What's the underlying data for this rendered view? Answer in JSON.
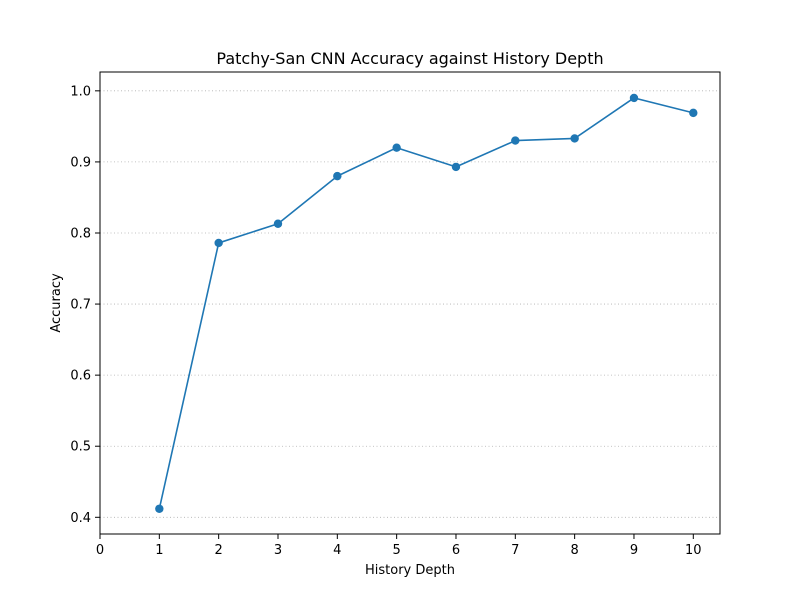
{
  "chart_data": {
    "type": "line",
    "title": "Patchy-San CNN Accuracy against History Depth",
    "xlabel": "History Depth",
    "ylabel": "Accuracy",
    "xlim": [
      0,
      10.45
    ],
    "ylim": [
      0.3765,
      1.0265
    ],
    "x_ticks": [
      0,
      1,
      2,
      3,
      4,
      5,
      6,
      7,
      8,
      9,
      10
    ],
    "y_ticks": [
      0.4,
      0.5,
      0.6,
      0.7,
      0.8,
      0.9,
      1.0
    ],
    "y_tick_labels": [
      "0.4",
      "0.5",
      "0.6",
      "0.7",
      "0.8",
      "0.9",
      "1.0"
    ],
    "grid": "horizontal dotted",
    "series": [
      {
        "x": [
          1,
          2,
          3,
          4,
          5,
          6,
          7,
          8,
          9,
          10
        ],
        "values": [
          0.412,
          0.786,
          0.813,
          0.88,
          0.92,
          0.893,
          0.93,
          0.933,
          0.99,
          0.969
        ],
        "color": "#1f77b4",
        "marker": "circle"
      }
    ]
  }
}
